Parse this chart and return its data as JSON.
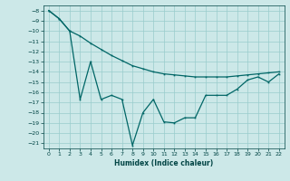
{
  "x": [
    0,
    1,
    2,
    3,
    4,
    5,
    6,
    7,
    8,
    9,
    10,
    11,
    12,
    13,
    14,
    15,
    16,
    17,
    18,
    19,
    20,
    21,
    22
  ],
  "upper_line": [
    -8,
    -8.8,
    -10,
    -10.5,
    -11.2,
    -11.8,
    -12.4,
    -12.9,
    -13.4,
    -13.7,
    -14.0,
    -14.2,
    -14.3,
    -14.4,
    -14.5,
    -14.5,
    -14.5,
    -14.5,
    -14.4,
    -14.3,
    -14.2,
    -14.1,
    -14.0
  ],
  "lower_line": [
    -8,
    -8.8,
    -10,
    -16.7,
    -13.0,
    -16.7,
    -16.3,
    -16.7,
    -21.2,
    -18.0,
    -16.7,
    -18.9,
    -19.0,
    -18.5,
    -18.5,
    -16.3,
    -16.3,
    -16.3,
    -15.7,
    -14.8,
    -14.5,
    -15.0,
    -14.2
  ],
  "ylim": [
    -21.5,
    -7.5
  ],
  "xlim": [
    -0.5,
    22.5
  ],
  "yticks": [
    -8,
    -9,
    -10,
    -11,
    -12,
    -13,
    -14,
    -15,
    -16,
    -17,
    -18,
    -19,
    -20,
    -21
  ],
  "xticks": [
    0,
    1,
    2,
    3,
    4,
    5,
    6,
    7,
    8,
    9,
    10,
    11,
    12,
    13,
    14,
    15,
    16,
    17,
    18,
    19,
    20,
    21,
    22
  ],
  "xlabel": "Humidex (Indice chaleur)",
  "line_color": "#006666",
  "bg_color": "#cce8e8",
  "grid_color": "#99cccc",
  "tick_color": "#004444"
}
